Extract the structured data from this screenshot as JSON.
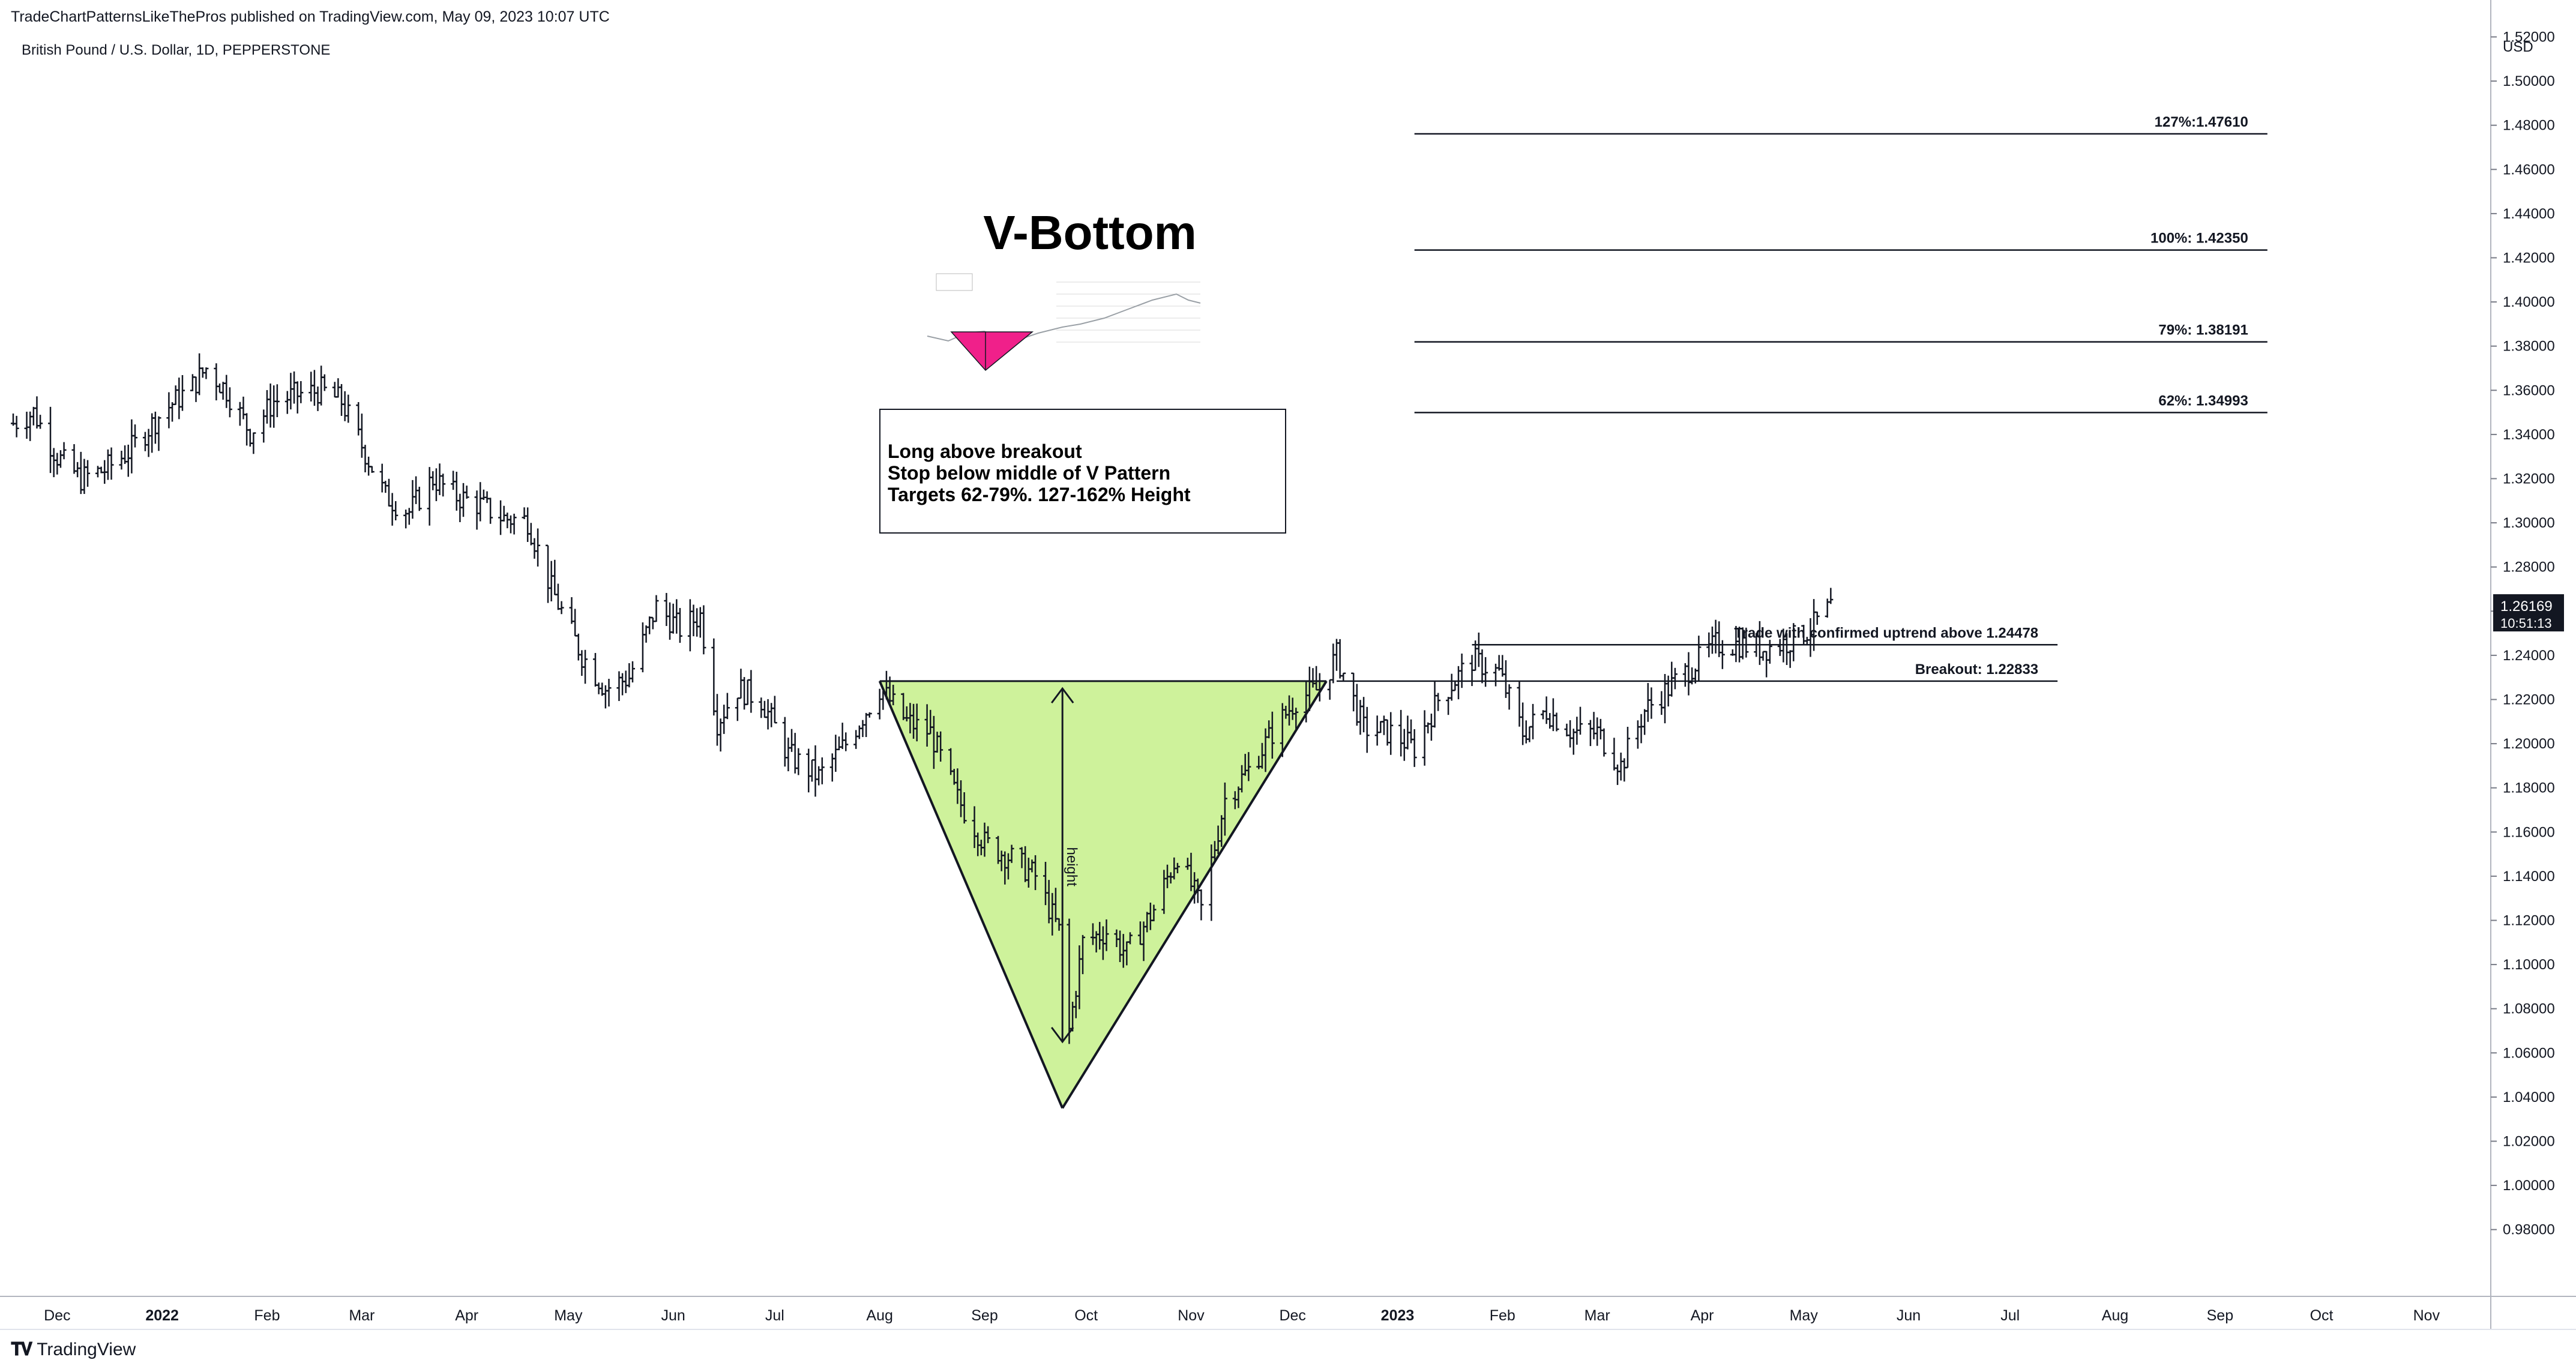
{
  "header": {
    "published_line": "TradeChartPatternsLikeThePros published on TradingView.com, May 09, 2023 10:07 UTC",
    "symbol_line": "British Pound / U.S. Dollar, 1D, PEPPERSTONE"
  },
  "footer": {
    "logo_text": "TradingView"
  },
  "chart_data": {
    "type": "ohlc",
    "currency_label": "USD",
    "ylim": [
      0.96,
      1.525
    ],
    "y_ticks": [
      "1.52000",
      "1.50000",
      "1.48000",
      "1.46000",
      "1.44000",
      "1.42000",
      "1.40000",
      "1.38000",
      "1.36000",
      "1.34000",
      "1.32000",
      "1.30000",
      "1.28000",
      "1.26000",
      "1.24000",
      "1.22000",
      "1.20000",
      "1.18000",
      "1.16000",
      "1.14000",
      "1.12000",
      "1.10000",
      "1.08000",
      "1.06000",
      "1.04000",
      "1.02000",
      "1.00000",
      "0.98000"
    ],
    "x_range": [
      "2021-11-18",
      "2023-11-20"
    ],
    "x_ticks": [
      {
        "label": "Dec",
        "date": "2021-12-01",
        "bold": false
      },
      {
        "label": "2022",
        "date": "2022-01-01",
        "bold": true
      },
      {
        "label": "Feb",
        "date": "2022-02-01",
        "bold": false
      },
      {
        "label": "Mar",
        "date": "2022-03-01",
        "bold": false
      },
      {
        "label": "Apr",
        "date": "2022-04-01",
        "bold": false
      },
      {
        "label": "May",
        "date": "2022-05-01",
        "bold": false
      },
      {
        "label": "Jun",
        "date": "2022-06-01",
        "bold": false
      },
      {
        "label": "Jul",
        "date": "2022-07-01",
        "bold": false
      },
      {
        "label": "Aug",
        "date": "2022-08-01",
        "bold": false
      },
      {
        "label": "Sep",
        "date": "2022-09-01",
        "bold": false
      },
      {
        "label": "Oct",
        "date": "2022-10-01",
        "bold": false
      },
      {
        "label": "Nov",
        "date": "2022-11-01",
        "bold": false
      },
      {
        "label": "Dec",
        "date": "2022-12-01",
        "bold": false
      },
      {
        "label": "2023",
        "date": "2023-01-01",
        "bold": true
      },
      {
        "label": "Feb",
        "date": "2023-02-01",
        "bold": false
      },
      {
        "label": "Mar",
        "date": "2023-03-01",
        "bold": false
      },
      {
        "label": "Apr",
        "date": "2023-04-01",
        "bold": false
      },
      {
        "label": "May",
        "date": "2023-05-01",
        "bold": false
      },
      {
        "label": "Jun",
        "date": "2023-06-01",
        "bold": false
      },
      {
        "label": "Jul",
        "date": "2023-07-01",
        "bold": false
      },
      {
        "label": "Aug",
        "date": "2023-08-01",
        "bold": false
      },
      {
        "label": "Sep",
        "date": "2023-09-01",
        "bold": false
      },
      {
        "label": "Oct",
        "date": "2023-10-01",
        "bold": false
      },
      {
        "label": "Nov",
        "date": "2023-11-01",
        "bold": false
      }
    ],
    "price_path": [
      [
        "2021-11-18",
        1.345
      ],
      [
        "2021-11-24",
        1.35
      ],
      [
        "2021-12-01",
        1.33
      ],
      [
        "2021-12-08",
        1.32
      ],
      [
        "2021-12-15",
        1.324
      ],
      [
        "2021-12-22",
        1.332
      ],
      [
        "2022-01-01",
        1.35
      ],
      [
        "2022-01-10",
        1.362
      ],
      [
        "2022-01-14",
        1.37
      ],
      [
        "2022-01-20",
        1.36
      ],
      [
        "2022-01-27",
        1.341
      ],
      [
        "2022-02-03",
        1.355
      ],
      [
        "2022-02-10",
        1.358
      ],
      [
        "2022-02-17",
        1.36
      ],
      [
        "2022-02-23",
        1.355
      ],
      [
        "2022-03-01",
        1.335
      ],
      [
        "2022-03-08",
        1.312
      ],
      [
        "2022-03-15",
        1.305
      ],
      [
        "2022-03-22",
        1.32
      ],
      [
        "2022-03-29",
        1.312
      ],
      [
        "2022-04-05",
        1.308
      ],
      [
        "2022-04-12",
        1.302
      ],
      [
        "2022-04-19",
        1.301
      ],
      [
        "2022-04-26",
        1.27
      ],
      [
        "2022-05-05",
        1.24
      ],
      [
        "2022-05-12",
        1.225
      ],
      [
        "2022-05-19",
        1.23
      ],
      [
        "2022-05-27",
        1.262
      ],
      [
        "2022-06-03",
        1.252
      ],
      [
        "2022-06-09",
        1.258
      ],
      [
        "2022-06-14",
        1.21
      ],
      [
        "2022-06-20",
        1.225
      ],
      [
        "2022-06-27",
        1.22
      ],
      [
        "2022-07-05",
        1.195
      ],
      [
        "2022-07-14",
        1.185
      ],
      [
        "2022-07-22",
        1.2
      ],
      [
        "2022-08-01",
        1.225
      ],
      [
        "2022-08-09",
        1.21
      ],
      [
        "2022-08-16",
        1.205
      ],
      [
        "2022-08-24",
        1.175
      ],
      [
        "2022-09-01",
        1.155
      ],
      [
        "2022-09-09",
        1.148
      ],
      [
        "2022-09-16",
        1.14
      ],
      [
        "2022-09-23",
        1.115
      ],
      [
        "2022-09-26",
        1.07
      ],
      [
        "2022-09-30",
        1.11
      ],
      [
        "2022-10-07",
        1.115
      ],
      [
        "2022-10-13",
        1.105
      ],
      [
        "2022-10-21",
        1.125
      ],
      [
        "2022-10-28",
        1.15
      ],
      [
        "2022-11-04",
        1.125
      ],
      [
        "2022-11-11",
        1.175
      ],
      [
        "2022-11-18",
        1.188
      ],
      [
        "2022-11-25",
        1.205
      ],
      [
        "2022-12-02",
        1.22
      ],
      [
        "2022-12-09",
        1.225
      ],
      [
        "2022-12-14",
        1.24
      ],
      [
        "2022-12-22",
        1.207
      ],
      [
        "2022-12-30",
        1.205
      ],
      [
        "2023-01-06",
        1.198
      ],
      [
        "2023-01-13",
        1.22
      ],
      [
        "2023-01-23",
        1.238
      ],
      [
        "2023-01-31",
        1.232
      ],
      [
        "2023-02-07",
        1.205
      ],
      [
        "2023-02-14",
        1.215
      ],
      [
        "2023-02-22",
        1.205
      ],
      [
        "2023-03-01",
        1.205
      ],
      [
        "2023-03-08",
        1.19
      ],
      [
        "2023-03-15",
        1.215
      ],
      [
        "2023-03-22",
        1.225
      ],
      [
        "2023-03-29",
        1.235
      ],
      [
        "2023-04-05",
        1.245
      ],
      [
        "2023-04-12",
        1.245
      ],
      [
        "2023-04-19",
        1.243
      ],
      [
        "2023-04-26",
        1.246
      ],
      [
        "2023-05-03",
        1.252
      ],
      [
        "2023-05-09",
        1.262
      ]
    ],
    "last_price": {
      "value": "1.26169",
      "countdown": "10:51:13"
    },
    "levels": [
      {
        "label": "127%:1.47610",
        "value": 1.4761,
        "x_start": "2023-01-06",
        "x_end": "2023-09-15"
      },
      {
        "label": "100%: 1.42350",
        "value": 1.4235,
        "x_start": "2023-01-06",
        "x_end": "2023-09-15"
      },
      {
        "label": "79%: 1.38191",
        "value": 1.38191,
        "x_start": "2023-01-06",
        "x_end": "2023-09-15"
      },
      {
        "label": "62%: 1.34993",
        "value": 1.34993,
        "x_start": "2023-01-06",
        "x_end": "2023-09-15"
      },
      {
        "label": "Trade with confirmed uptrend above 1.24478",
        "value": 1.24478,
        "x_start": "2023-01-23",
        "x_end": "2023-07-15"
      },
      {
        "label": "Breakout: 1.22833",
        "value": 1.22833,
        "x_start": "2022-12-14",
        "x_end": "2023-07-15"
      }
    ],
    "v_pattern": {
      "left_top": [
        "2022-08-01",
        1.22833
      ],
      "right_top": [
        "2022-12-11",
        1.22833
      ],
      "bottom": [
        "2022-09-24",
        1.035
      ],
      "fill": "#c5f08a"
    },
    "height_arrow": {
      "label": "height",
      "x": "2022-09-24",
      "y_top": 1.225,
      "y_bottom": 1.065
    },
    "annotation_title": "V-Bottom",
    "note_lines": [
      "Long above breakout",
      "Stop below middle of V Pattern",
      "Targets 62-79%. 127-162% Height"
    ],
    "colors": {
      "bars": "#131722",
      "grid": "#e0e3eb",
      "fill": "#c5f08a",
      "thumb_accent": "#f0208a",
      "last_price_bg": "#131722"
    }
  }
}
